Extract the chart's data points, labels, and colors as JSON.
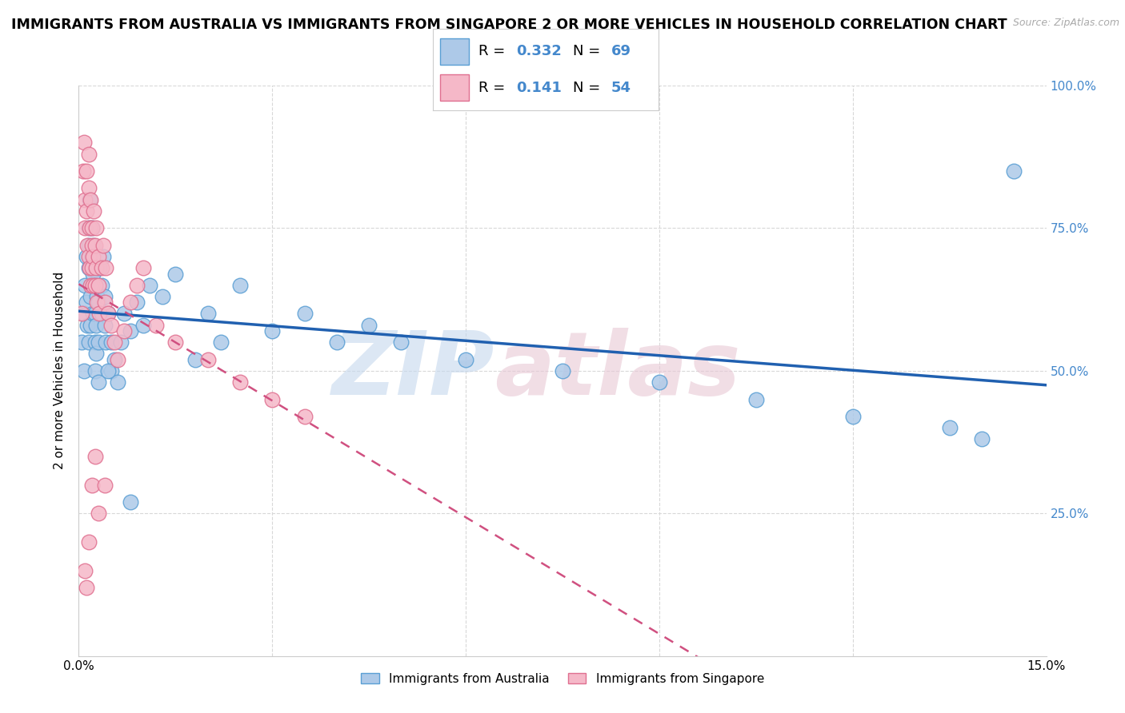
{
  "title": "IMMIGRANTS FROM AUSTRALIA VS IMMIGRANTS FROM SINGAPORE 2 OR MORE VEHICLES IN HOUSEHOLD CORRELATION CHART",
  "source": "Source: ZipAtlas.com",
  "ylabel": "2 or more Vehicles in Household",
  "xlim": [
    0.0,
    15.0
  ],
  "ylim": [
    0.0,
    100.0
  ],
  "australia_R": 0.332,
  "australia_N": 69,
  "singapore_R": 0.141,
  "singapore_N": 54,
  "australia_color": "#adc9e8",
  "australia_edge_color": "#5a9fd4",
  "australia_line_color": "#2060b0",
  "singapore_color": "#f5b8c8",
  "singapore_edge_color": "#e07090",
  "singapore_line_color": "#d05080",
  "grid_color": "#d8d8d8",
  "tick_color": "#4488cc",
  "australia_x": [
    0.05,
    0.08,
    0.08,
    0.1,
    0.12,
    0.12,
    0.13,
    0.15,
    0.15,
    0.15,
    0.16,
    0.17,
    0.18,
    0.18,
    0.2,
    0.2,
    0.2,
    0.22,
    0.22,
    0.23,
    0.25,
    0.25,
    0.25,
    0.25,
    0.27,
    0.27,
    0.28,
    0.3,
    0.3,
    0.3,
    0.32,
    0.35,
    0.35,
    0.38,
    0.4,
    0.4,
    0.42,
    0.45,
    0.5,
    0.5,
    0.55,
    0.6,
    0.65,
    0.7,
    0.8,
    0.9,
    1.0,
    1.1,
    1.3,
    1.5,
    2.0,
    2.5,
    3.0,
    3.5,
    4.0,
    4.5,
    5.0,
    6.0,
    7.5,
    9.0,
    10.5,
    12.0,
    13.5,
    14.0,
    14.5,
    0.8,
    2.2,
    1.8,
    0.45
  ],
  "australia_y": [
    55,
    60,
    50,
    65,
    70,
    62,
    58,
    72,
    55,
    68,
    75,
    80,
    63,
    58,
    65,
    70,
    75,
    60,
    67,
    72,
    50,
    55,
    60,
    65,
    53,
    58,
    63,
    48,
    55,
    62,
    68,
    60,
    65,
    70,
    58,
    63,
    55,
    60,
    50,
    55,
    52,
    48,
    55,
    60,
    57,
    62,
    58,
    65,
    63,
    67,
    60,
    65,
    57,
    60,
    55,
    58,
    55,
    52,
    50,
    48,
    45,
    42,
    40,
    38,
    85,
    27,
    55,
    52,
    50
  ],
  "singapore_x": [
    0.05,
    0.07,
    0.08,
    0.1,
    0.1,
    0.12,
    0.12,
    0.13,
    0.15,
    0.15,
    0.15,
    0.17,
    0.17,
    0.18,
    0.18,
    0.2,
    0.2,
    0.2,
    0.22,
    0.22,
    0.23,
    0.25,
    0.25,
    0.27,
    0.27,
    0.28,
    0.3,
    0.3,
    0.32,
    0.35,
    0.38,
    0.4,
    0.42,
    0.45,
    0.5,
    0.55,
    0.6,
    0.7,
    0.8,
    0.9,
    1.0,
    1.2,
    1.5,
    2.0,
    2.5,
    3.0,
    3.5,
    0.25,
    0.2,
    0.15,
    0.1,
    0.12,
    0.3,
    0.4
  ],
  "singapore_y": [
    60,
    85,
    90,
    80,
    75,
    85,
    78,
    72,
    88,
    82,
    70,
    75,
    68,
    80,
    65,
    75,
    68,
    72,
    65,
    70,
    78,
    65,
    72,
    68,
    75,
    62,
    65,
    70,
    60,
    68,
    72,
    62,
    68,
    60,
    58,
    55,
    52,
    57,
    62,
    65,
    68,
    58,
    55,
    52,
    48,
    45,
    42,
    35,
    30,
    20,
    15,
    12,
    25,
    30
  ],
  "title_fontsize": 12.5,
  "axis_label_fontsize": 11,
  "tick_fontsize": 11
}
